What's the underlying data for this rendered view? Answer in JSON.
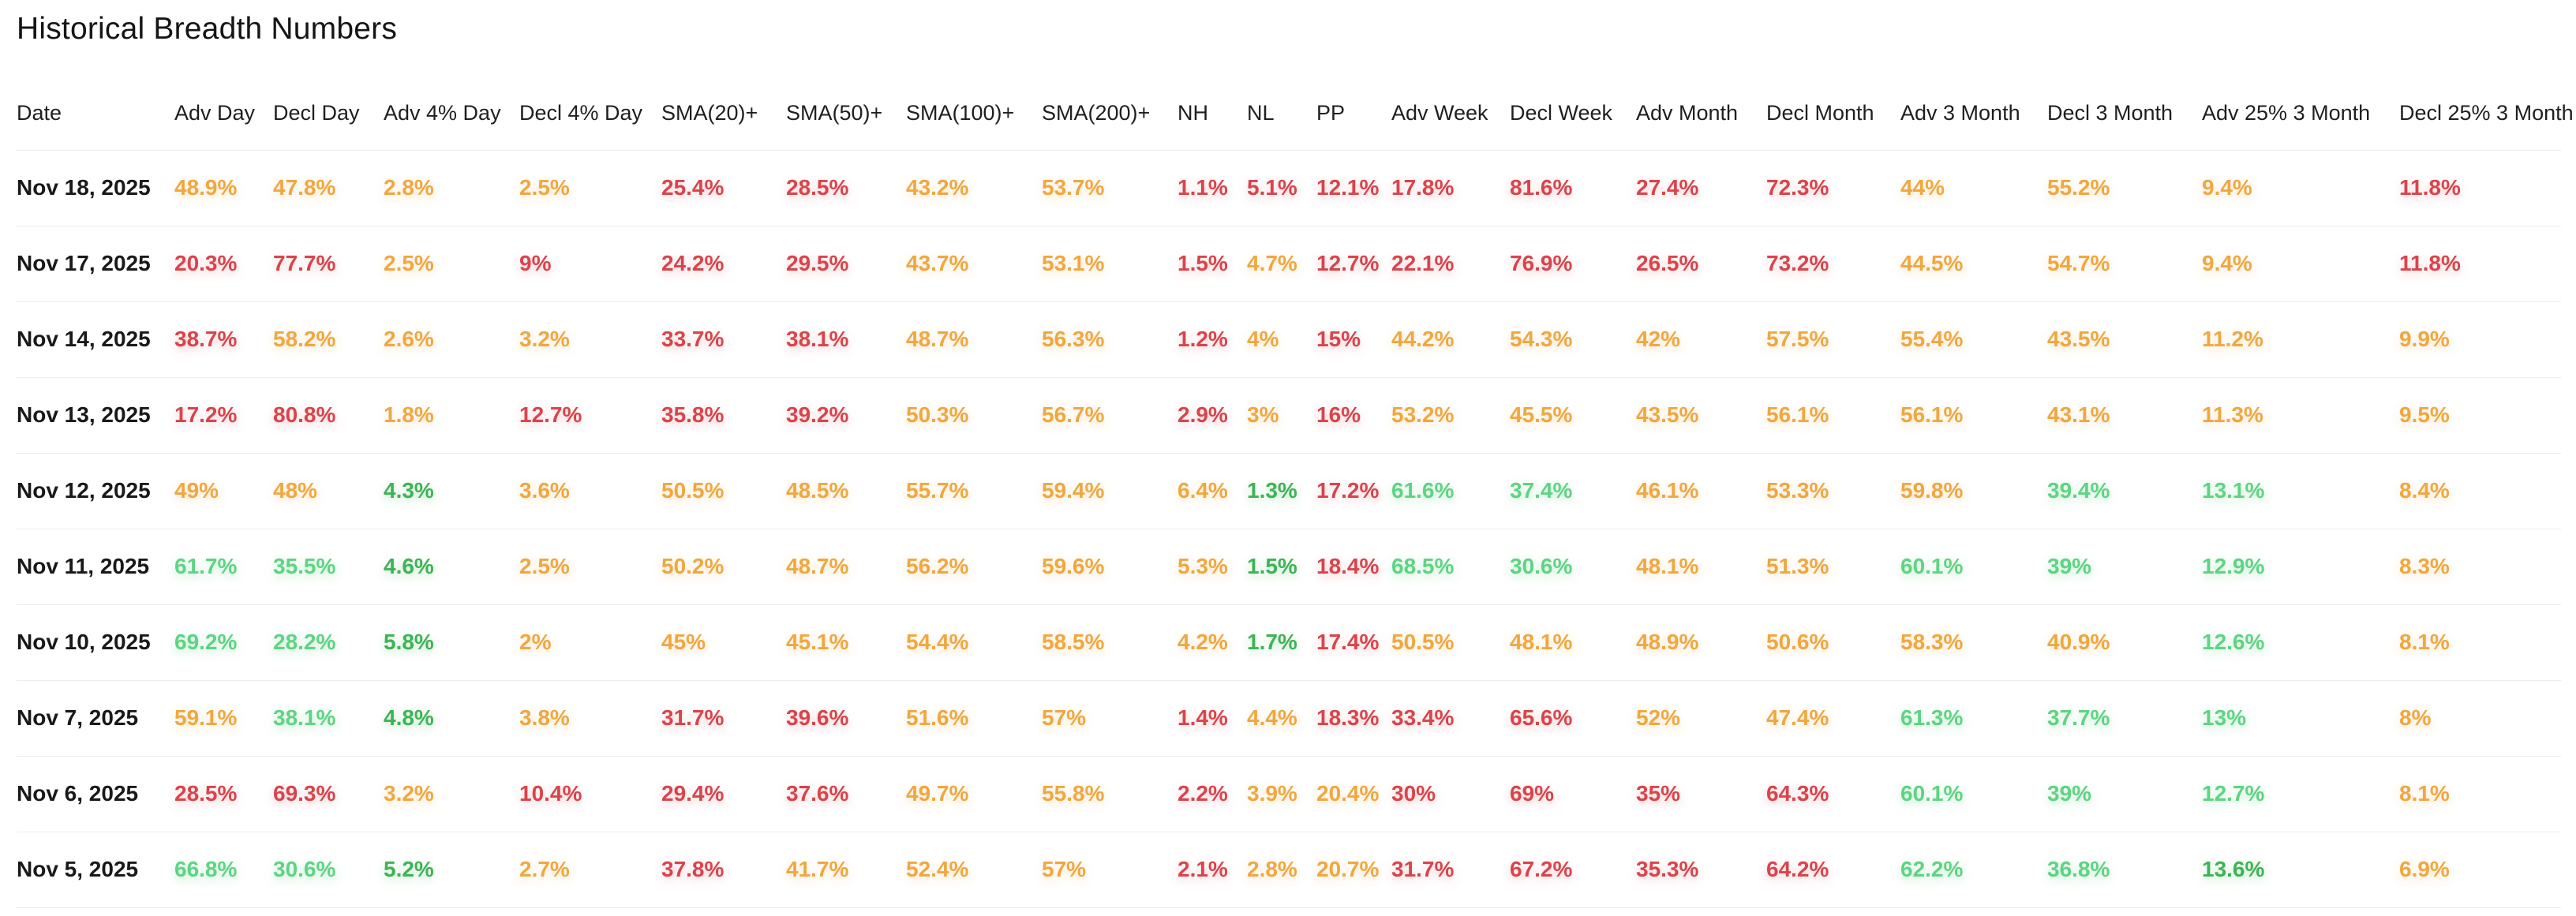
{
  "page": {
    "title": "Historical Breadth Numbers"
  },
  "colors": {
    "red": "#d9444b",
    "amber": "#f0a740",
    "green": "#5ed482",
    "green_dark": "#3cb454",
    "divider": "#ebebeb",
    "heading_text": "#151515",
    "date_text": "#191919"
  },
  "table": {
    "columns": [
      "Date",
      "Adv Day",
      "Decl Day",
      "Adv 4% Day",
      "Decl 4% Day",
      "SMA(20)+",
      "SMA(50)+",
      "SMA(100)+",
      "SMA(200)+",
      "NH",
      "NL",
      "PP",
      "Adv Week",
      "Decl Week",
      "Adv Month",
      "Decl Month",
      "Adv 3 Month",
      "Decl 3 Month",
      "Adv 25% 3 Month",
      "Decl 25% 3 Month"
    ],
    "rows": [
      {
        "date": "Nov 18, 2025",
        "values": [
          [
            "48.9%",
            "amber"
          ],
          [
            "47.8%",
            "amber"
          ],
          [
            "2.8%",
            "amber"
          ],
          [
            "2.5%",
            "amber"
          ],
          [
            "25.4%",
            "red"
          ],
          [
            "28.5%",
            "red"
          ],
          [
            "43.2%",
            "amber"
          ],
          [
            "53.7%",
            "amber"
          ],
          [
            "1.1%",
            "red"
          ],
          [
            "5.1%",
            "red"
          ],
          [
            "12.1%",
            "red"
          ],
          [
            "17.8%",
            "red"
          ],
          [
            "81.6%",
            "red"
          ],
          [
            "27.4%",
            "red"
          ],
          [
            "72.3%",
            "red"
          ],
          [
            "44%",
            "amber"
          ],
          [
            "55.2%",
            "amber"
          ],
          [
            "9.4%",
            "amber"
          ],
          [
            "11.8%",
            "red"
          ]
        ]
      },
      {
        "date": "Nov 17, 2025",
        "values": [
          [
            "20.3%",
            "red"
          ],
          [
            "77.7%",
            "red"
          ],
          [
            "2.5%",
            "amber"
          ],
          [
            "9%",
            "red"
          ],
          [
            "24.2%",
            "red"
          ],
          [
            "29.5%",
            "red"
          ],
          [
            "43.7%",
            "amber"
          ],
          [
            "53.1%",
            "amber"
          ],
          [
            "1.5%",
            "red"
          ],
          [
            "4.7%",
            "amber"
          ],
          [
            "12.7%",
            "red"
          ],
          [
            "22.1%",
            "red"
          ],
          [
            "76.9%",
            "red"
          ],
          [
            "26.5%",
            "red"
          ],
          [
            "73.2%",
            "red"
          ],
          [
            "44.5%",
            "amber"
          ],
          [
            "54.7%",
            "amber"
          ],
          [
            "9.4%",
            "amber"
          ],
          [
            "11.8%",
            "red"
          ]
        ]
      },
      {
        "date": "Nov 14, 2025",
        "values": [
          [
            "38.7%",
            "red"
          ],
          [
            "58.2%",
            "amber"
          ],
          [
            "2.6%",
            "amber"
          ],
          [
            "3.2%",
            "amber"
          ],
          [
            "33.7%",
            "red"
          ],
          [
            "38.1%",
            "red"
          ],
          [
            "48.7%",
            "amber"
          ],
          [
            "56.3%",
            "amber"
          ],
          [
            "1.2%",
            "red"
          ],
          [
            "4%",
            "amber"
          ],
          [
            "15%",
            "red"
          ],
          [
            "44.2%",
            "amber"
          ],
          [
            "54.3%",
            "amber"
          ],
          [
            "42%",
            "amber"
          ],
          [
            "57.5%",
            "amber"
          ],
          [
            "55.4%",
            "amber"
          ],
          [
            "43.5%",
            "amber"
          ],
          [
            "11.2%",
            "amber"
          ],
          [
            "9.9%",
            "amber"
          ]
        ]
      },
      {
        "date": "Nov 13, 2025",
        "values": [
          [
            "17.2%",
            "red"
          ],
          [
            "80.8%",
            "red"
          ],
          [
            "1.8%",
            "amber"
          ],
          [
            "12.7%",
            "red"
          ],
          [
            "35.8%",
            "red"
          ],
          [
            "39.2%",
            "red"
          ],
          [
            "50.3%",
            "amber"
          ],
          [
            "56.7%",
            "amber"
          ],
          [
            "2.9%",
            "red"
          ],
          [
            "3%",
            "amber"
          ],
          [
            "16%",
            "red"
          ],
          [
            "53.2%",
            "amber"
          ],
          [
            "45.5%",
            "amber"
          ],
          [
            "43.5%",
            "amber"
          ],
          [
            "56.1%",
            "amber"
          ],
          [
            "56.1%",
            "amber"
          ],
          [
            "43.1%",
            "amber"
          ],
          [
            "11.3%",
            "amber"
          ],
          [
            "9.5%",
            "amber"
          ]
        ]
      },
      {
        "date": "Nov 12, 2025",
        "values": [
          [
            "49%",
            "amber"
          ],
          [
            "48%",
            "amber"
          ],
          [
            "4.3%",
            "green-dark"
          ],
          [
            "3.6%",
            "amber"
          ],
          [
            "50.5%",
            "amber"
          ],
          [
            "48.5%",
            "amber"
          ],
          [
            "55.7%",
            "amber"
          ],
          [
            "59.4%",
            "amber"
          ],
          [
            "6.4%",
            "amber"
          ],
          [
            "1.3%",
            "green-dark"
          ],
          [
            "17.2%",
            "red"
          ],
          [
            "61.6%",
            "green"
          ],
          [
            "37.4%",
            "green"
          ],
          [
            "46.1%",
            "amber"
          ],
          [
            "53.3%",
            "amber"
          ],
          [
            "59.8%",
            "amber"
          ],
          [
            "39.4%",
            "green"
          ],
          [
            "13.1%",
            "green"
          ],
          [
            "8.4%",
            "amber"
          ]
        ]
      },
      {
        "date": "Nov 11, 2025",
        "values": [
          [
            "61.7%",
            "green"
          ],
          [
            "35.5%",
            "green"
          ],
          [
            "4.6%",
            "green-dark"
          ],
          [
            "2.5%",
            "amber"
          ],
          [
            "50.2%",
            "amber"
          ],
          [
            "48.7%",
            "amber"
          ],
          [
            "56.2%",
            "amber"
          ],
          [
            "59.6%",
            "amber"
          ],
          [
            "5.3%",
            "amber"
          ],
          [
            "1.5%",
            "green-dark"
          ],
          [
            "18.4%",
            "red"
          ],
          [
            "68.5%",
            "green"
          ],
          [
            "30.6%",
            "green"
          ],
          [
            "48.1%",
            "amber"
          ],
          [
            "51.3%",
            "amber"
          ],
          [
            "60.1%",
            "green"
          ],
          [
            "39%",
            "green"
          ],
          [
            "12.9%",
            "green"
          ],
          [
            "8.3%",
            "amber"
          ]
        ]
      },
      {
        "date": "Nov 10, 2025",
        "values": [
          [
            "69.2%",
            "green"
          ],
          [
            "28.2%",
            "green"
          ],
          [
            "5.8%",
            "green-dark"
          ],
          [
            "2%",
            "amber"
          ],
          [
            "45%",
            "amber"
          ],
          [
            "45.1%",
            "amber"
          ],
          [
            "54.4%",
            "amber"
          ],
          [
            "58.5%",
            "amber"
          ],
          [
            "4.2%",
            "amber"
          ],
          [
            "1.7%",
            "green-dark"
          ],
          [
            "17.4%",
            "red"
          ],
          [
            "50.5%",
            "amber"
          ],
          [
            "48.1%",
            "amber"
          ],
          [
            "48.9%",
            "amber"
          ],
          [
            "50.6%",
            "amber"
          ],
          [
            "58.3%",
            "amber"
          ],
          [
            "40.9%",
            "amber"
          ],
          [
            "12.6%",
            "green"
          ],
          [
            "8.1%",
            "amber"
          ]
        ]
      },
      {
        "date": "Nov 7, 2025",
        "values": [
          [
            "59.1%",
            "amber"
          ],
          [
            "38.1%",
            "green"
          ],
          [
            "4.8%",
            "green-dark"
          ],
          [
            "3.8%",
            "amber"
          ],
          [
            "31.7%",
            "red"
          ],
          [
            "39.6%",
            "red"
          ],
          [
            "51.6%",
            "amber"
          ],
          [
            "57%",
            "amber"
          ],
          [
            "1.4%",
            "red"
          ],
          [
            "4.4%",
            "amber"
          ],
          [
            "18.3%",
            "red"
          ],
          [
            "33.4%",
            "red"
          ],
          [
            "65.6%",
            "red"
          ],
          [
            "52%",
            "amber"
          ],
          [
            "47.4%",
            "amber"
          ],
          [
            "61.3%",
            "green"
          ],
          [
            "37.7%",
            "green"
          ],
          [
            "13%",
            "green"
          ],
          [
            "8%",
            "amber"
          ]
        ]
      },
      {
        "date": "Nov 6, 2025",
        "values": [
          [
            "28.5%",
            "red"
          ],
          [
            "69.3%",
            "red"
          ],
          [
            "3.2%",
            "amber"
          ],
          [
            "10.4%",
            "red"
          ],
          [
            "29.4%",
            "red"
          ],
          [
            "37.6%",
            "red"
          ],
          [
            "49.7%",
            "amber"
          ],
          [
            "55.8%",
            "amber"
          ],
          [
            "2.2%",
            "red"
          ],
          [
            "3.9%",
            "amber"
          ],
          [
            "20.4%",
            "amber"
          ],
          [
            "30%",
            "red"
          ],
          [
            "69%",
            "red"
          ],
          [
            "35%",
            "red"
          ],
          [
            "64.3%",
            "red"
          ],
          [
            "60.1%",
            "green"
          ],
          [
            "39%",
            "green"
          ],
          [
            "12.7%",
            "green"
          ],
          [
            "8.1%",
            "amber"
          ]
        ]
      },
      {
        "date": "Nov 5, 2025",
        "values": [
          [
            "66.8%",
            "green"
          ],
          [
            "30.6%",
            "green"
          ],
          [
            "5.2%",
            "green-dark"
          ],
          [
            "2.7%",
            "amber"
          ],
          [
            "37.8%",
            "red"
          ],
          [
            "41.7%",
            "amber"
          ],
          [
            "52.4%",
            "amber"
          ],
          [
            "57%",
            "amber"
          ],
          [
            "2.1%",
            "red"
          ],
          [
            "2.8%",
            "amber"
          ],
          [
            "20.7%",
            "amber"
          ],
          [
            "31.7%",
            "red"
          ],
          [
            "67.2%",
            "red"
          ],
          [
            "35.3%",
            "red"
          ],
          [
            "64.2%",
            "red"
          ],
          [
            "62.2%",
            "green"
          ],
          [
            "36.8%",
            "green"
          ],
          [
            "13.6%",
            "green-dark"
          ],
          [
            "6.9%",
            "amber"
          ]
        ]
      }
    ]
  }
}
